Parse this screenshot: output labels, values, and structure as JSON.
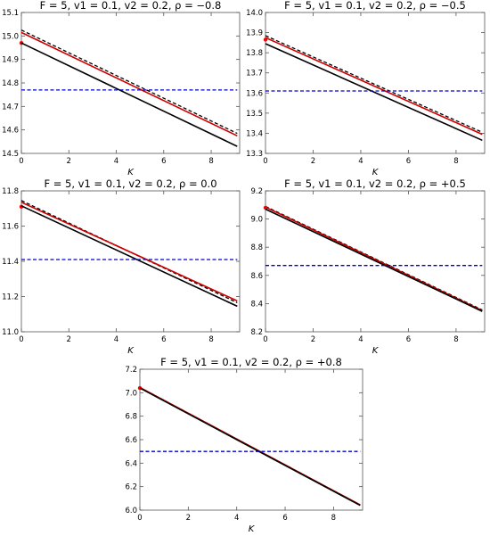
{
  "chart_data": [
    {
      "type": "line",
      "title": "F = 5,  v1 = 0.1,  v2 = 0.2,  ρ = −0.8",
      "xlabel": "K",
      "ylabel": "",
      "xlim": [
        0,
        9.2
      ],
      "ylim": [
        14.5,
        15.1
      ],
      "xticks": [
        "0",
        "2",
        "4",
        "6",
        "8"
      ],
      "yticks": [
        "14.5",
        "14.6",
        "14.7",
        "14.8",
        "14.9",
        "15.0",
        "15.1"
      ],
      "series": [
        {
          "style": "dashed",
          "color": "#000000",
          "x": [
            0,
            9.1
          ],
          "y": [
            15.025,
            14.585
          ]
        },
        {
          "style": "solid",
          "color": "#cc0000",
          "x": [
            0,
            9.1
          ],
          "y": [
            15.015,
            14.575
          ]
        },
        {
          "style": "markers",
          "color": "#ff0000",
          "x": [
            0
          ],
          "y": [
            14.97
          ]
        },
        {
          "style": "solid",
          "color": "#000000",
          "x": [
            0,
            9.1
          ],
          "y": [
            14.97,
            14.53
          ]
        },
        {
          "style": "dashed",
          "color": "#0000cc",
          "x": [
            0,
            9.1
          ],
          "y": [
            14.77,
            14.77
          ]
        }
      ]
    },
    {
      "type": "line",
      "title": "F = 5,  v1 = 0.1,  v2 = 0.2,  ρ = −0.5",
      "xlabel": "K",
      "ylabel": "",
      "xlim": [
        0,
        9.2
      ],
      "ylim": [
        13.3,
        14.0
      ],
      "xticks": [
        "0",
        "2",
        "4",
        "6",
        "8"
      ],
      "yticks": [
        "13.3",
        "13.4",
        "13.5",
        "13.6",
        "13.7",
        "13.8",
        "13.9",
        "14.0"
      ],
      "series": [
        {
          "style": "dashed",
          "color": "#000000",
          "x": [
            0,
            9.1
          ],
          "y": [
            13.885,
            13.405
          ]
        },
        {
          "style": "solid",
          "color": "#cc0000",
          "x": [
            0,
            9.1
          ],
          "y": [
            13.875,
            13.395
          ]
        },
        {
          "style": "markers",
          "color": "#ff0000",
          "x": [
            0
          ],
          "y": [
            13.865
          ]
        },
        {
          "style": "solid",
          "color": "#000000",
          "x": [
            0,
            9.1
          ],
          "y": [
            13.845,
            13.365
          ]
        },
        {
          "style": "dashed",
          "color": "#0000cc",
          "x": [
            0,
            9.1
          ],
          "y": [
            13.61,
            13.61
          ]
        }
      ]
    },
    {
      "type": "line",
      "title": "F = 5,  v1 = 0.1,  v2 = 0.2,  ρ =  0.0",
      "xlabel": "K",
      "ylabel": "",
      "xlim": [
        0,
        9.2
      ],
      "ylim": [
        11.0,
        11.8
      ],
      "xticks": [
        "0",
        "2",
        "4",
        "6",
        "8"
      ],
      "yticks": [
        "11.0",
        "11.2",
        "11.4",
        "11.6",
        "11.8"
      ],
      "series": [
        {
          "style": "dashed",
          "color": "#000000",
          "x": [
            0,
            9.1
          ],
          "y": [
            11.745,
            11.165
          ]
        },
        {
          "style": "solid",
          "color": "#cc0000",
          "x": [
            0,
            9.1
          ],
          "y": [
            11.735,
            11.175
          ]
        },
        {
          "style": "markers",
          "color": "#ff0000",
          "x": [
            0
          ],
          "y": [
            11.71
          ]
        },
        {
          "style": "solid",
          "color": "#000000",
          "x": [
            0,
            9.1
          ],
          "y": [
            11.715,
            11.145
          ]
        },
        {
          "style": "dashed",
          "color": "#0000cc",
          "x": [
            0,
            9.1
          ],
          "y": [
            11.41,
            11.41
          ]
        }
      ]
    },
    {
      "type": "line",
      "title": "F = 5,  v1 = 0.1,  v2 = 0.2,  ρ = +0.5",
      "xlabel": "K",
      "ylabel": "",
      "xlim": [
        0,
        9.2
      ],
      "ylim": [
        8.2,
        9.2
      ],
      "xticks": [
        "0",
        "2",
        "4",
        "6",
        "8"
      ],
      "yticks": [
        "8.2",
        "8.4",
        "8.6",
        "8.8",
        "9.0",
        "9.2"
      ],
      "series": [
        {
          "style": "dashed",
          "color": "#000000",
          "x": [
            0,
            9.1
          ],
          "y": [
            9.09,
            8.355
          ]
        },
        {
          "style": "solid",
          "color": "#cc0000",
          "x": [
            0,
            9.1
          ],
          "y": [
            9.085,
            8.35
          ]
        },
        {
          "style": "markers",
          "color": "#ff0000",
          "x": [
            0
          ],
          "y": [
            9.08
          ]
        },
        {
          "style": "solid",
          "color": "#000000",
          "x": [
            0,
            9.1
          ],
          "y": [
            9.07,
            8.345
          ]
        },
        {
          "style": "dashed",
          "color": "#0000cc",
          "x": [
            0,
            9.1
          ],
          "y": [
            8.67,
            8.67
          ]
        }
      ]
    },
    {
      "type": "line",
      "title": "F = 5,  v1 = 0.1,  v2 = 0.2,  ρ = +0.8",
      "xlabel": "K",
      "ylabel": "",
      "xlim": [
        0,
        9.2
      ],
      "ylim": [
        6.0,
        7.2
      ],
      "xticks": [
        "0",
        "2",
        "4",
        "6",
        "8"
      ],
      "yticks": [
        "6.0",
        "6.2",
        "6.4",
        "6.6",
        "6.8",
        "7.0",
        "7.2"
      ],
      "series": [
        {
          "style": "dashed",
          "color": "#000000",
          "x": [
            0,
            9.1
          ],
          "y": [
            7.045,
            6.045
          ]
        },
        {
          "style": "solid",
          "color": "#cc0000",
          "x": [
            0,
            9.1
          ],
          "y": [
            7.045,
            6.045
          ]
        },
        {
          "style": "markers",
          "color": "#ff0000",
          "x": [
            0
          ],
          "y": [
            7.04
          ]
        },
        {
          "style": "solid",
          "color": "#000000",
          "x": [
            0,
            9.1
          ],
          "y": [
            7.04,
            6.04
          ]
        },
        {
          "style": "dashed",
          "color": "#0000cc",
          "x": [
            0,
            9.1
          ],
          "y": [
            6.5,
            6.5
          ]
        }
      ]
    }
  ]
}
